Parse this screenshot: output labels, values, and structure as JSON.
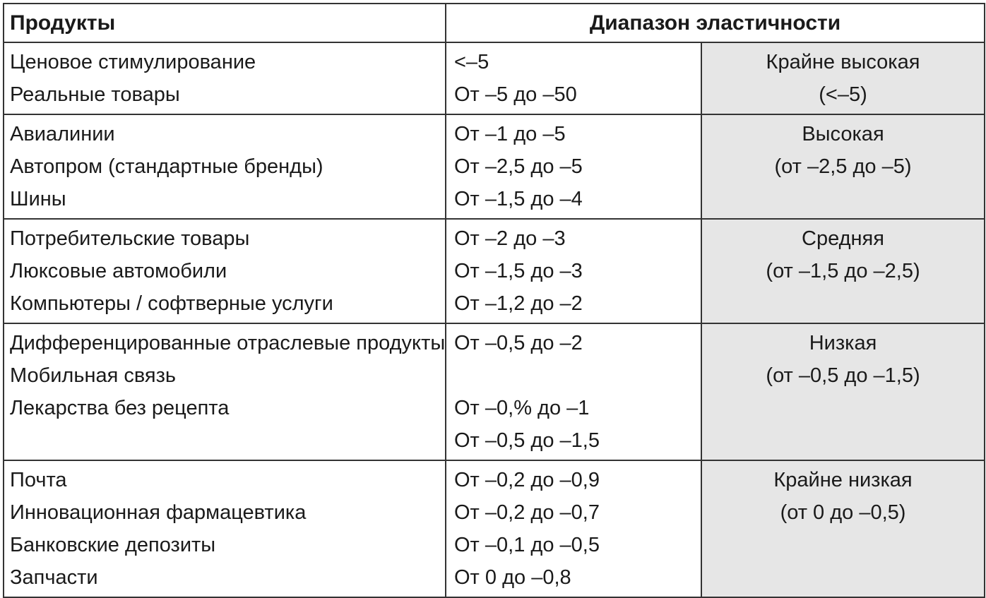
{
  "header": {
    "products": "Продукты",
    "range": "Диапазон эластичности"
  },
  "groups": [
    {
      "products": [
        "Ценовое стимулирование",
        "Реальные товары"
      ],
      "ranges": [
        "<–5",
        "От –5 до –50"
      ],
      "level": "Крайне высокая",
      "level_range": "(<–5)"
    },
    {
      "products": [
        "Авиалинии",
        "Автопром (стандартные бренды)",
        "Шины"
      ],
      "ranges": [
        "От –1 до –5",
        "От –2,5 до –5",
        "От –1,5 до –4"
      ],
      "level": "Высокая",
      "level_range": "(от –2,5 до –5)"
    },
    {
      "products": [
        "Потребительские товары",
        "Люксовые автомобили",
        "Компьютеры / софтверные услуги"
      ],
      "ranges": [
        "От –2 до –3",
        "От –1,5 до –3",
        "От –1,2 до –2"
      ],
      "level": "Средняя",
      "level_range": "(от –1,5 до –2,5)"
    },
    {
      "products": [
        "Дифференцированные отраслевые продукты",
        "Мобильная связь",
        "Лекарства без рецепта",
        ""
      ],
      "ranges": [
        "От –0,5 до –2",
        "",
        "От –0,% до –1",
        "От –0,5 до –1,5"
      ],
      "level": "Низкая",
      "level_range": "(от –0,5 до –1,5)"
    },
    {
      "products": [
        "Почта",
        "Инновационная фармацевтика",
        "Банковские депозиты",
        "Запчасти"
      ],
      "ranges": [
        "От –0,2 до –0,9",
        "От –0,2 до –0,7",
        "От –0,1 до –0,5",
        "От 0 до –0,8"
      ],
      "level": "Крайне низкая",
      "level_range": "(от 0 до –0,5)"
    }
  ]
}
